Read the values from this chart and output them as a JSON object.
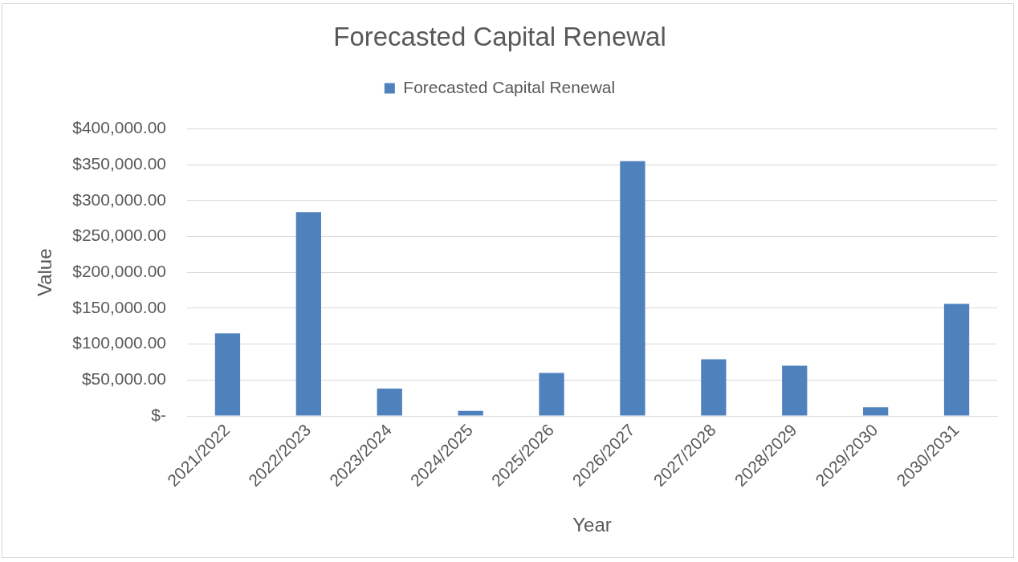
{
  "chart_data": {
    "type": "bar",
    "title": "Forecasted Capital Renewal",
    "xlabel": "Year",
    "ylabel": "Value",
    "categories": [
      "2021/2022",
      "2022/2023",
      "2023/2024",
      "2024/2025",
      "2025/2026",
      "2026/2027",
      "2027/2028",
      "2028/2029",
      "2029/2030",
      "2030/2031"
    ],
    "series": [
      {
        "name": "Forecasted Capital Renewal",
        "color": "#4f81bd",
        "values": [
          115000,
          284000,
          38000,
          7000,
          60000,
          355000,
          79000,
          70000,
          12000,
          156000
        ]
      }
    ],
    "ylim": [
      0,
      400000
    ],
    "yticks": [
      {
        "value": 0,
        "label": "$-"
      },
      {
        "value": 50000,
        "label": "$50,000.00"
      },
      {
        "value": 100000,
        "label": "$100,000.00"
      },
      {
        "value": 150000,
        "label": "$150,000.00"
      },
      {
        "value": 200000,
        "label": "$200,000.00"
      },
      {
        "value": 250000,
        "label": "$250,000.00"
      },
      {
        "value": 300000,
        "label": "$300,000.00"
      },
      {
        "value": 350000,
        "label": "$350,000.00"
      },
      {
        "value": 400000,
        "label": "$400,000.00"
      }
    ],
    "grid": "y",
    "legend": "top"
  }
}
